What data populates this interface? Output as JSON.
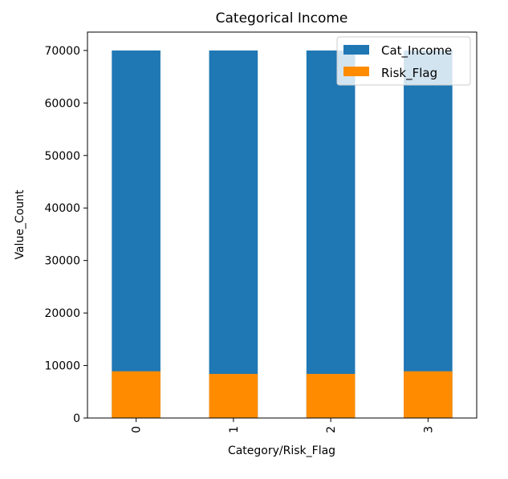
{
  "chart_data": {
    "type": "bar",
    "stacked": false,
    "overlaid": true,
    "title": "Categorical Income",
    "xlabel": "Category/Risk_Flag",
    "ylabel": "Value_Count",
    "categories": [
      "0",
      "1",
      "2",
      "3"
    ],
    "series": [
      {
        "name": "Cat_Income",
        "color": "#1f77b4",
        "values": [
          70000,
          70000,
          70000,
          70000
        ]
      },
      {
        "name": "Risk_Flag",
        "color": "#ff8c00",
        "values": [
          8900,
          8400,
          8400,
          8900
        ]
      }
    ],
    "ylim": [
      0,
      73500
    ],
    "yticks": [
      0,
      10000,
      20000,
      30000,
      40000,
      50000,
      60000,
      70000
    ],
    "grid": false,
    "legend_position": "top-right"
  }
}
